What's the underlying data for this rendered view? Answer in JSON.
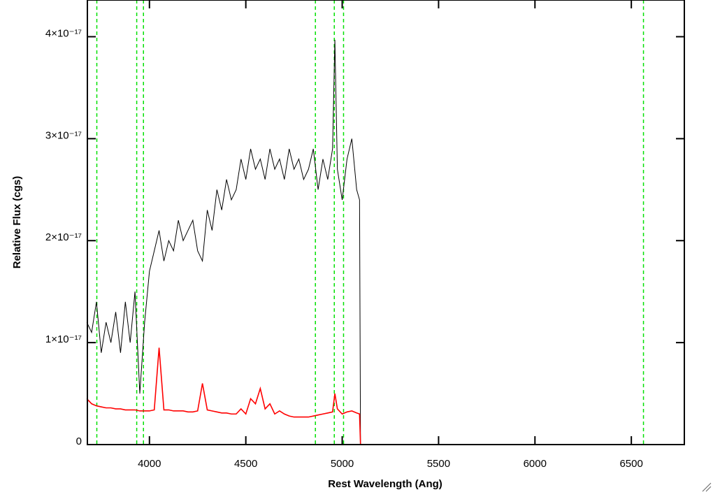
{
  "chart_data": {
    "type": "line",
    "xlabel": "Rest Wavelength (Ang)",
    "ylabel": "Relative Flux (cgs)",
    "x": [
      3675,
      3700,
      3725,
      3750,
      3775,
      3800,
      3825,
      3850,
      3875,
      3900,
      3925,
      3950,
      3975,
      4000,
      4025,
      4050,
      4075,
      4100,
      4125,
      4150,
      4175,
      4200,
      4225,
      4250,
      4275,
      4300,
      4325,
      4350,
      4375,
      4400,
      4425,
      4450,
      4475,
      4500,
      4525,
      4550,
      4575,
      4600,
      4625,
      4650,
      4675,
      4700,
      4725,
      4750,
      4775,
      4800,
      4825,
      4850,
      4875,
      4900,
      4925,
      4950,
      4962,
      4975,
      5000,
      5025,
      5050,
      5075,
      5090,
      5095,
      6775
    ],
    "series": [
      {
        "color": "#000000",
        "values": [
          1.2e-17,
          1.1e-17,
          1.4e-17,
          9e-18,
          1.2e-17,
          1e-17,
          1.3e-17,
          9e-18,
          1.4e-17,
          1e-17,
          1.5e-17,
          5e-18,
          1.2e-17,
          1.7e-17,
          1.9e-17,
          2.1e-17,
          1.8e-17,
          2e-17,
          1.9e-17,
          2.2e-17,
          2e-17,
          2.1e-17,
          2.2e-17,
          1.9e-17,
          1.8e-17,
          2.3e-17,
          2.1e-17,
          2.5e-17,
          2.3e-17,
          2.6e-17,
          2.4e-17,
          2.5e-17,
          2.8e-17,
          2.6e-17,
          2.9e-17,
          2.7e-17,
          2.8e-17,
          2.6e-17,
          2.9e-17,
          2.7e-17,
          2.8e-17,
          2.6e-17,
          2.9e-17,
          2.7e-17,
          2.8e-17,
          2.6e-17,
          2.7e-17,
          2.9e-17,
          2.5e-17,
          2.8e-17,
          2.6e-17,
          2.9e-17,
          3.97e-17,
          2.7e-17,
          2.4e-17,
          2.8e-17,
          3e-17,
          2.5e-17,
          2.4e-17,
          0,
          0
        ]
      },
      {
        "color": "#ff0000",
        "values": [
          4.5e-18,
          4e-18,
          3.8e-18,
          3.7e-18,
          3.6e-18,
          3.6e-18,
          3.5e-18,
          3.5e-18,
          3.4e-18,
          3.4e-18,
          3.4e-18,
          3.3e-18,
          3.3e-18,
          3.3e-18,
          3.4e-18,
          9.5e-18,
          3.4e-18,
          3.4e-18,
          3.3e-18,
          3.3e-18,
          3.3e-18,
          3.2e-18,
          3.2e-18,
          3.3e-18,
          6e-18,
          3.4e-18,
          3.3e-18,
          3.2e-18,
          3.1e-18,
          3.1e-18,
          3e-18,
          3e-18,
          3.5e-18,
          3e-18,
          4.5e-18,
          4e-18,
          5.5e-18,
          3.5e-18,
          4e-18,
          3e-18,
          3.3e-18,
          3e-18,
          2.8e-18,
          2.7e-18,
          2.7e-18,
          2.7e-18,
          2.7e-18,
          2.8e-18,
          2.9e-18,
          3e-18,
          3.1e-18,
          3.2e-18,
          5e-18,
          3.5e-18,
          3e-18,
          3.2e-18,
          3.3e-18,
          3.1e-18,
          3e-18,
          0,
          0
        ]
      }
    ],
    "vlines": [
      3727,
      3934,
      3969,
      4861,
      4959,
      5007,
      6563
    ],
    "vline_color": "#00e000",
    "xlim": [
      3678,
      6775
    ],
    "ylim": [
      0,
      4.36e-17
    ],
    "xticks": [
      4000,
      4500,
      5000,
      5500,
      6000,
      6500
    ],
    "yticks": [
      0,
      {
        "value": 1e-17,
        "label": "1×10⁻¹⁷"
      },
      {
        "value": 2e-17,
        "label": "2×10⁻¹⁷"
      },
      {
        "value": 3e-17,
        "label": "3×10⁻¹⁷"
      },
      {
        "value": 4e-17,
        "label": "4×10⁻¹⁷"
      }
    ]
  }
}
